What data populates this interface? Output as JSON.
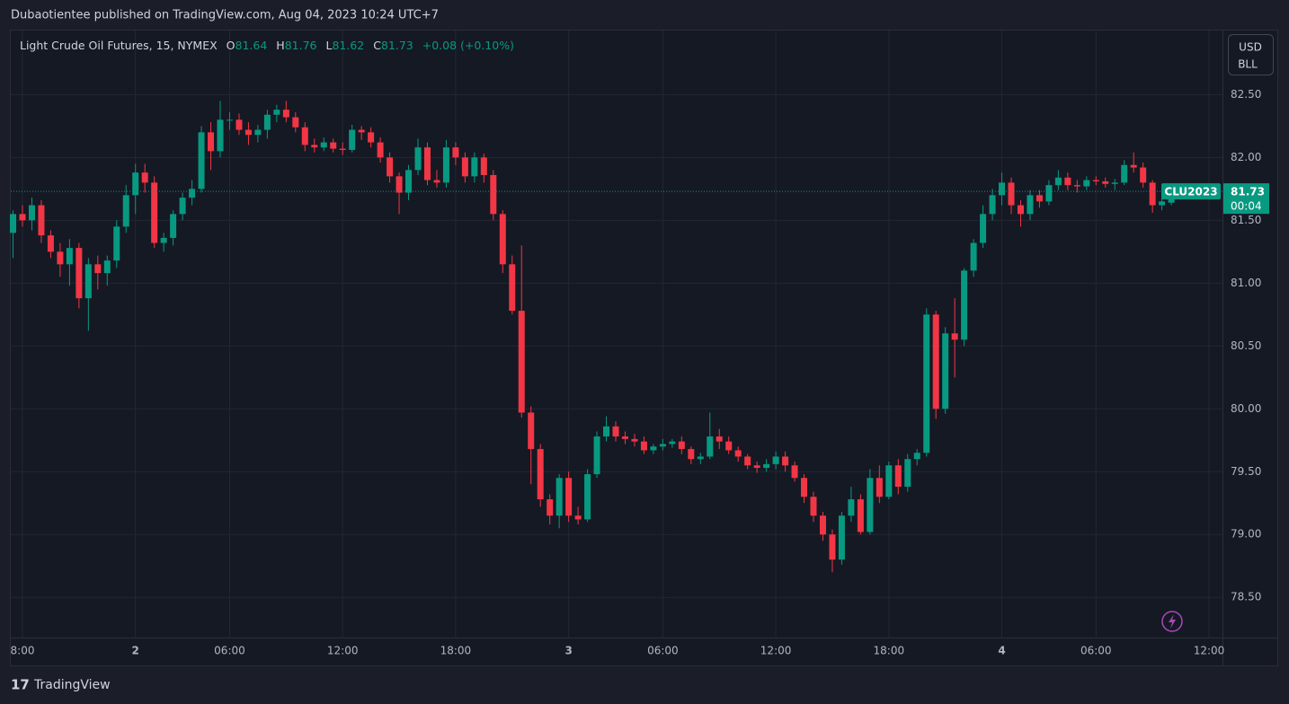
{
  "header": {
    "text": "Dubaotientee published on TradingView.com, Aug 04, 2023 10:24 UTC+7"
  },
  "footer": {
    "brand": "TradingView"
  },
  "chart_data": {
    "type": "candlestick",
    "title": "Light Crude Oil Futures, 15, NYMEX",
    "legend_ohlc": {
      "o_key": "O",
      "open": "81.64",
      "h_key": "H",
      "high": "81.76",
      "l_key": "L",
      "low": "81.62",
      "c_key": "C",
      "close": "81.73",
      "change": "+0.08 (+0.10%)"
    },
    "price_axis": {
      "currency": "USD",
      "unit": "BLL"
    },
    "last_price": 81.73,
    "last_symbol": "CLU2023",
    "countdown": "00:04",
    "up_color": "#089981",
    "down_color": "#f23645",
    "grid": true,
    "ylim": [
      78.18,
      83.01
    ],
    "yticks": [
      {
        "value": 78.5,
        "label": "78.50"
      },
      {
        "value": 79,
        "label": "79.00"
      },
      {
        "value": 79.5,
        "label": "79.50"
      },
      {
        "value": 80,
        "label": "80.00"
      },
      {
        "value": 80.5,
        "label": "80.50"
      },
      {
        "value": 81,
        "label": "81.00"
      },
      {
        "value": 81.5,
        "label": "81.50"
      },
      {
        "value": 82,
        "label": "82.00"
      },
      {
        "value": 82.5,
        "label": "82.50"
      }
    ],
    "categories": [
      null,
      "8:00",
      null,
      null,
      null,
      null,
      null,
      null,
      null,
      null,
      null,
      null,
      null,
      "2",
      null,
      null,
      null,
      null,
      null,
      null,
      null,
      null,
      null,
      "06:00",
      null,
      null,
      null,
      null,
      null,
      null,
      null,
      null,
      null,
      null,
      null,
      "12:00",
      null,
      null,
      null,
      null,
      null,
      null,
      null,
      null,
      null,
      null,
      null,
      "18:00",
      null,
      null,
      null,
      null,
      null,
      null,
      null,
      null,
      null,
      null,
      null,
      "3",
      null,
      null,
      null,
      null,
      null,
      null,
      null,
      null,
      null,
      "06:00",
      null,
      null,
      null,
      null,
      null,
      null,
      null,
      null,
      null,
      null,
      null,
      "12:00",
      null,
      null,
      null,
      null,
      null,
      null,
      null,
      null,
      null,
      null,
      null,
      "18:00",
      null,
      null,
      null,
      null,
      null,
      null,
      null,
      null,
      null,
      null,
      null,
      "4",
      null,
      null,
      null,
      null,
      null,
      null,
      null,
      null,
      null,
      "06:00",
      null,
      null,
      null,
      null,
      null,
      null,
      null,
      null,
      null,
      null,
      null,
      "12:00"
    ],
    "open": [
      81.4,
      81.55,
      81.5,
      81.62,
      81.38,
      81.25,
      81.15,
      81.28,
      80.88,
      81.15,
      81.08,
      81.18,
      81.45,
      81.7,
      81.88,
      81.8,
      81.32,
      81.36,
      81.55,
      81.68,
      81.75,
      82.2,
      82.05,
      82.3,
      82.3,
      82.22,
      82.18,
      82.22,
      82.34,
      82.38,
      82.32,
      82.24,
      82.1,
      82.08,
      82.12,
      82.07,
      82.06,
      82.22,
      82.2,
      82.12,
      82.0,
      81.85,
      81.72,
      81.9,
      82.08,
      81.82,
      81.8,
      82.08,
      82.0,
      81.85,
      82.0,
      81.86,
      81.55,
      81.15,
      80.78,
      79.97,
      79.68,
      79.28,
      79.15,
      79.45,
      79.15,
      79.12,
      79.48,
      79.78,
      79.86,
      79.78,
      79.76,
      79.74,
      79.67,
      79.7,
      79.72,
      79.74,
      79.68,
      79.6,
      79.62,
      79.78,
      79.74,
      79.67,
      79.62,
      79.55,
      79.53,
      79.56,
      79.62,
      79.55,
      79.45,
      79.3,
      79.15,
      79.0,
      78.8,
      79.15,
      79.28,
      79.02,
      79.45,
      79.3,
      79.55,
      79.38,
      79.6,
      79.65,
      80.75,
      80.0,
      80.6,
      80.55,
      81.1,
      81.32,
      81.55,
      81.7,
      81.8,
      81.62,
      81.55,
      81.7,
      81.65,
      81.78,
      81.84,
      81.78,
      81.77,
      81.82,
      81.81,
      81.79,
      81.8,
      81.94,
      81.92,
      81.8,
      81.62,
      81.64,
      null,
      null,
      null,
      null
    ],
    "high": [
      81.58,
      81.62,
      81.68,
      81.66,
      81.42,
      81.32,
      81.35,
      81.32,
      81.2,
      81.22,
      81.22,
      81.5,
      81.78,
      81.95,
      81.95,
      81.85,
      81.4,
      81.58,
      81.72,
      81.82,
      82.25,
      82.28,
      82.45,
      82.36,
      82.35,
      82.28,
      82.26,
      82.38,
      82.42,
      82.45,
      82.36,
      82.28,
      82.15,
      82.16,
      82.15,
      82.12,
      82.26,
      82.25,
      82.24,
      82.16,
      82.04,
      81.88,
      81.94,
      82.15,
      82.12,
      81.9,
      82.14,
      82.12,
      82.04,
      82.04,
      82.03,
      81.9,
      81.58,
      81.22,
      81.3,
      80.02,
      79.72,
      79.32,
      79.48,
      79.5,
      79.22,
      79.52,
      79.82,
      79.94,
      79.9,
      79.82,
      79.8,
      79.78,
      79.72,
      79.76,
      79.76,
      79.78,
      79.7,
      79.65,
      79.97,
      79.84,
      79.78,
      79.7,
      79.64,
      79.58,
      79.6,
      79.66,
      79.66,
      79.58,
      79.48,
      79.34,
      79.18,
      79.04,
      79.18,
      79.38,
      79.32,
      79.52,
      79.55,
      79.58,
      79.6,
      79.64,
      79.68,
      80.8,
      80.78,
      80.65,
      80.88,
      81.12,
      81.35,
      81.62,
      81.75,
      81.88,
      81.84,
      81.66,
      81.74,
      81.74,
      81.82,
      81.9,
      81.88,
      81.82,
      81.85,
      81.85,
      81.84,
      81.83,
      81.98,
      82.04,
      81.96,
      81.82,
      81.68,
      81.76,
      null,
      null,
      null,
      null
    ],
    "low": [
      81.2,
      81.45,
      81.42,
      81.32,
      81.2,
      81.05,
      80.98,
      80.8,
      80.62,
      80.95,
      80.98,
      81.12,
      81.4,
      81.55,
      81.72,
      81.28,
      81.25,
      81.3,
      81.5,
      81.62,
      81.72,
      81.9,
      82.0,
      82.22,
      82.18,
      82.1,
      82.12,
      82.15,
      82.28,
      82.28,
      82.2,
      82.05,
      82.04,
      82.05,
      82.04,
      82.02,
      82.04,
      82.14,
      82.08,
      81.96,
      81.8,
      81.55,
      81.66,
      81.86,
      81.78,
      81.76,
      81.76,
      81.94,
      81.8,
      81.8,
      81.8,
      81.5,
      81.08,
      80.75,
      79.93,
      79.4,
      79.22,
      79.08,
      79.05,
      79.1,
      79.08,
      79.1,
      79.45,
      79.74,
      79.74,
      79.72,
      79.7,
      79.64,
      79.64,
      79.67,
      79.69,
      79.64,
      79.56,
      79.56,
      79.6,
      79.68,
      79.64,
      79.58,
      79.52,
      79.49,
      79.5,
      79.52,
      79.5,
      79.42,
      79.25,
      79.1,
      78.95,
      78.7,
      78.76,
      79.1,
      79.0,
      79.0,
      79.25,
      79.28,
      79.32,
      79.34,
      79.55,
      79.62,
      79.92,
      79.96,
      80.25,
      80.5,
      81.05,
      81.28,
      81.5,
      81.62,
      81.55,
      81.45,
      81.5,
      81.6,
      81.62,
      81.74,
      81.74,
      81.72,
      81.74,
      81.78,
      81.76,
      81.74,
      81.78,
      81.88,
      81.76,
      81.56,
      81.58,
      81.62,
      null,
      null,
      null,
      null
    ],
    "close": [
      81.55,
      81.5,
      81.62,
      81.38,
      81.25,
      81.15,
      81.28,
      80.88,
      81.15,
      81.08,
      81.18,
      81.45,
      81.7,
      81.88,
      81.8,
      81.32,
      81.36,
      81.55,
      81.68,
      81.75,
      82.2,
      82.05,
      82.3,
      82.3,
      82.22,
      82.18,
      82.22,
      82.34,
      82.38,
      82.32,
      82.24,
      82.1,
      82.08,
      82.12,
      82.07,
      82.06,
      82.22,
      82.2,
      82.12,
      82.0,
      81.85,
      81.72,
      81.9,
      82.08,
      81.82,
      81.8,
      82.08,
      82.0,
      81.85,
      82.0,
      81.86,
      81.55,
      81.15,
      80.78,
      79.97,
      79.68,
      79.28,
      79.15,
      79.45,
      79.15,
      79.12,
      79.48,
      79.78,
      79.86,
      79.78,
      79.76,
      79.74,
      79.67,
      79.7,
      79.72,
      79.74,
      79.68,
      79.6,
      79.62,
      79.78,
      79.74,
      79.67,
      79.62,
      79.55,
      79.53,
      79.56,
      79.62,
      79.55,
      79.45,
      79.3,
      79.15,
      79.0,
      78.8,
      79.15,
      79.28,
      79.02,
      79.45,
      79.3,
      79.55,
      79.38,
      79.6,
      79.65,
      80.75,
      80.0,
      80.6,
      80.55,
      81.1,
      81.32,
      81.55,
      81.7,
      81.8,
      81.62,
      81.55,
      81.7,
      81.65,
      81.78,
      81.84,
      81.78,
      81.77,
      81.82,
      81.81,
      81.79,
      81.8,
      81.94,
      81.92,
      81.8,
      81.62,
      81.65,
      81.73,
      null,
      null,
      null,
      null
    ]
  }
}
